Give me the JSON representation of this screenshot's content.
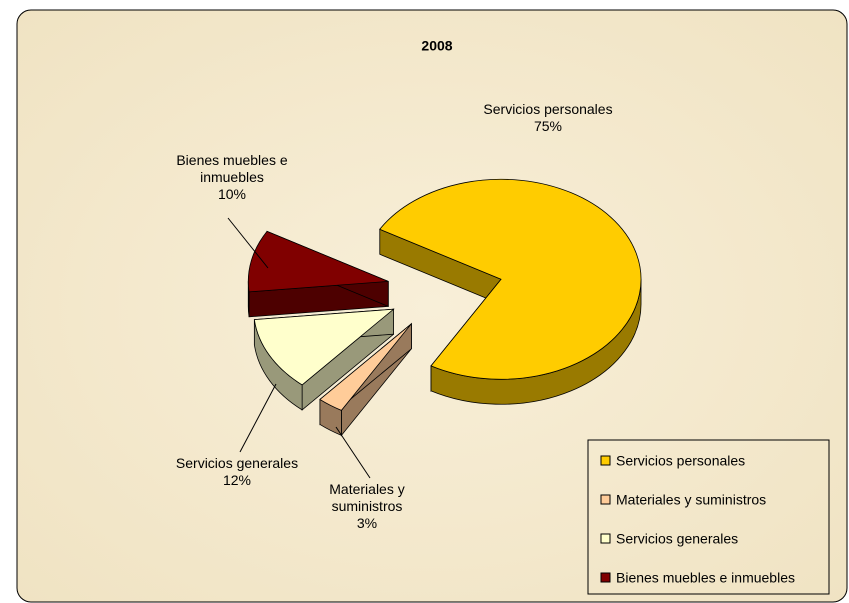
{
  "chart_data": {
    "type": "pie3d",
    "title": "2008",
    "categories": [
      "Servicios personales",
      "Materiales y suministros",
      "Servicios generales",
      "Bienes muebles e inmuebles"
    ],
    "values": [
      75,
      3,
      12,
      10
    ],
    "value_labels": [
      "75%",
      "3%",
      "12%",
      "10%"
    ],
    "colors": [
      "#FFCC00",
      "#FFCC99",
      "#FFFFCC",
      "#800000"
    ],
    "legend": "lower right",
    "exploded": true
  }
}
